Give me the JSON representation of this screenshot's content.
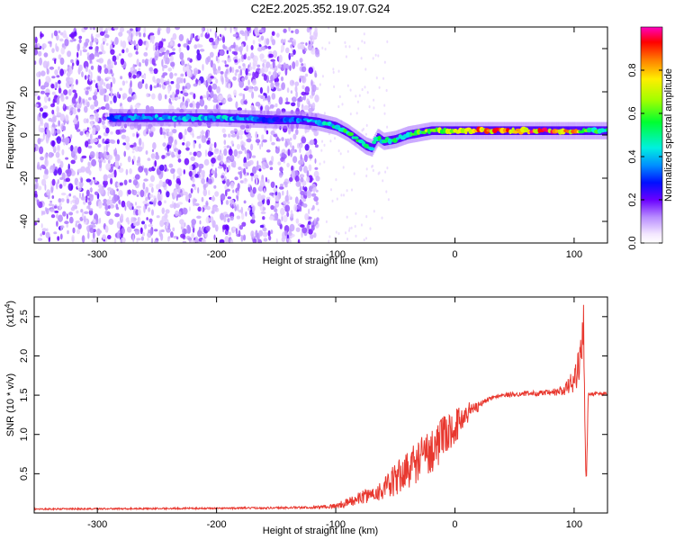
{
  "title": "C2E2.2025.352.19.07.G24",
  "chart_data": [
    {
      "type": "heatmap",
      "name": "spectrogram",
      "xlabel": "Height of straight line (km)",
      "ylabel": "Frequency (Hz)",
      "xlim": [
        -353,
        128
      ],
      "ylim": [
        -50,
        50
      ],
      "xticks": [
        -300,
        -200,
        -100,
        0,
        100
      ],
      "yticks": [
        -40,
        -20,
        0,
        20,
        40
      ],
      "colorbar": {
        "label": "Normalized spectral amplitude",
        "range": [
          0,
          1
        ],
        "ticks": [
          0.0,
          0.2,
          0.4,
          0.6,
          0.8
        ],
        "tick_labels": [
          "0.0",
          "0.2",
          "0.4",
          "0.6",
          "0.8"
        ]
      },
      "noise_region": {
        "x_range": [
          -353,
          -115
        ],
        "freq_range": [
          -50,
          50
        ],
        "amplitude": 0.1
      },
      "signal_trace": {
        "x": [
          -290,
          -250,
          -200,
          -150,
          -130,
          -115,
          -100,
          -90,
          -80,
          -75,
          -70,
          -65,
          -60,
          -50,
          -40,
          -30,
          -20,
          -10,
          0,
          20,
          50,
          80,
          100,
          110,
          128
        ],
        "freq": [
          8,
          8,
          8,
          7,
          7,
          6,
          4,
          1,
          -3,
          -5,
          -6,
          -1,
          -3,
          -2,
          0,
          1,
          2,
          2,
          2,
          2,
          2,
          2,
          2,
          2,
          2
        ],
        "amplitude": [
          0.35,
          0.4,
          0.45,
          0.3,
          0.35,
          0.45,
          0.5,
          0.55,
          0.6,
          0.5,
          0.45,
          0.55,
          0.5,
          0.5,
          0.55,
          0.6,
          0.7,
          0.7,
          0.8,
          0.85,
          0.9,
          0.9,
          0.85,
          0.6,
          0.5
        ]
      }
    },
    {
      "type": "line",
      "name": "snr",
      "xlabel": "Height of straight line (km)",
      "ylabel": "SNR (10 * v/v)",
      "y_multiplier_label": "(x10",
      "y_multiplier_exp": "4",
      "y_multiplier_close": ")",
      "xlim": [
        -353,
        128
      ],
      "ylim": [
        0,
        2.75
      ],
      "xticks": [
        -300,
        -200,
        -100,
        0,
        100
      ],
      "yticks": [
        0.5,
        1.0,
        1.5,
        2.0,
        2.5
      ],
      "ytick_labels": [
        "0.5",
        "1.0",
        "1.5",
        "2.0",
        "2.5"
      ],
      "color": "#e8382f",
      "series": [
        {
          "x": [
            -353,
            -200,
            -120,
            -100,
            -90,
            -80,
            -70,
            -60,
            -55,
            -50,
            -40,
            -30,
            -20,
            -10,
            0,
            10,
            20,
            30,
            40,
            60,
            80,
            90,
            95,
            100,
            105,
            108,
            110,
            112,
            128
          ],
          "y": [
            0.05,
            0.06,
            0.07,
            0.09,
            0.13,
            0.19,
            0.24,
            0.3,
            0.35,
            0.42,
            0.55,
            0.68,
            0.8,
            0.95,
            1.1,
            1.27,
            1.38,
            1.46,
            1.5,
            1.52,
            1.53,
            1.55,
            1.6,
            1.7,
            1.9,
            2.4,
            0.4,
            1.52,
            1.52
          ],
          "noise": [
            0.01,
            0.01,
            0.015,
            0.03,
            0.06,
            0.08,
            0.1,
            0.14,
            0.18,
            0.22,
            0.25,
            0.28,
            0.3,
            0.28,
            0.22,
            0.15,
            0.08,
            0.05,
            0.03,
            0.03,
            0.04,
            0.08,
            0.12,
            0.15,
            0.25,
            0.3,
            0.2,
            0.03,
            0.02
          ]
        }
      ]
    }
  ]
}
